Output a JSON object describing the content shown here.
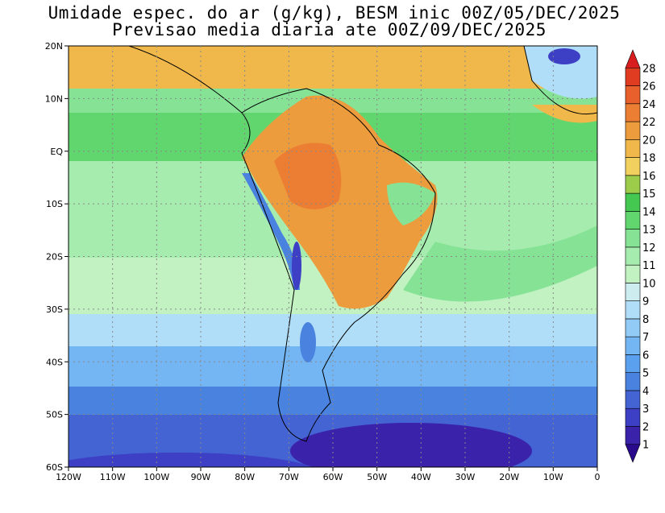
{
  "title_line1": "Umidade espec. do ar (g/kg), BESM inic 00Z/05/DEC/2025",
  "title_line2": "Previsao media diaria ate 00Z/09/DEC/2025",
  "map": {
    "lon_range": [
      -120,
      0
    ],
    "lat_range": [
      -60,
      20
    ],
    "grid": "dotted",
    "lat_labels": [
      "20N",
      "10N",
      "EQ",
      "10S",
      "20S",
      "30S",
      "40S",
      "50S",
      "60S"
    ],
    "lon_labels": [
      "120W",
      "110W",
      "100W",
      "90W",
      "80W",
      "70W",
      "60W",
      "50W",
      "40W",
      "30W",
      "20W",
      "10W",
      "0"
    ]
  },
  "colorbar": {
    "levels": [
      "1",
      "2",
      "3",
      "4",
      "5",
      "6",
      "7",
      "8",
      "9",
      "10",
      "11",
      "12",
      "13",
      "14",
      "15",
      "16",
      "18",
      "20",
      "22",
      "24",
      "26",
      "28"
    ],
    "colors": [
      "#2a0a8c",
      "#3a22aa",
      "#3d3fc4",
      "#4464d4",
      "#4a82e0",
      "#5aa0ee",
      "#74b6f3",
      "#92cbf6",
      "#b0def8",
      "#cdecf0",
      "#c2f2c2",
      "#a6ecae",
      "#86e396",
      "#62d66e",
      "#44c852",
      "#9ccc4a",
      "#f2d060",
      "#f0b84a",
      "#ec9c3c",
      "#ec7e34",
      "#e8602c",
      "#e03c22",
      "#d81e1e"
    ]
  },
  "colors": {
    "ocean_s": "#4a72d6",
    "ocean_mid": "#92cbf6",
    "ocean_trop": "#9ee7a4",
    "land_wet": "#ec9c3c",
    "land_core": "#ec7e34",
    "andes": "#4a82e0",
    "border": "#000000"
  }
}
